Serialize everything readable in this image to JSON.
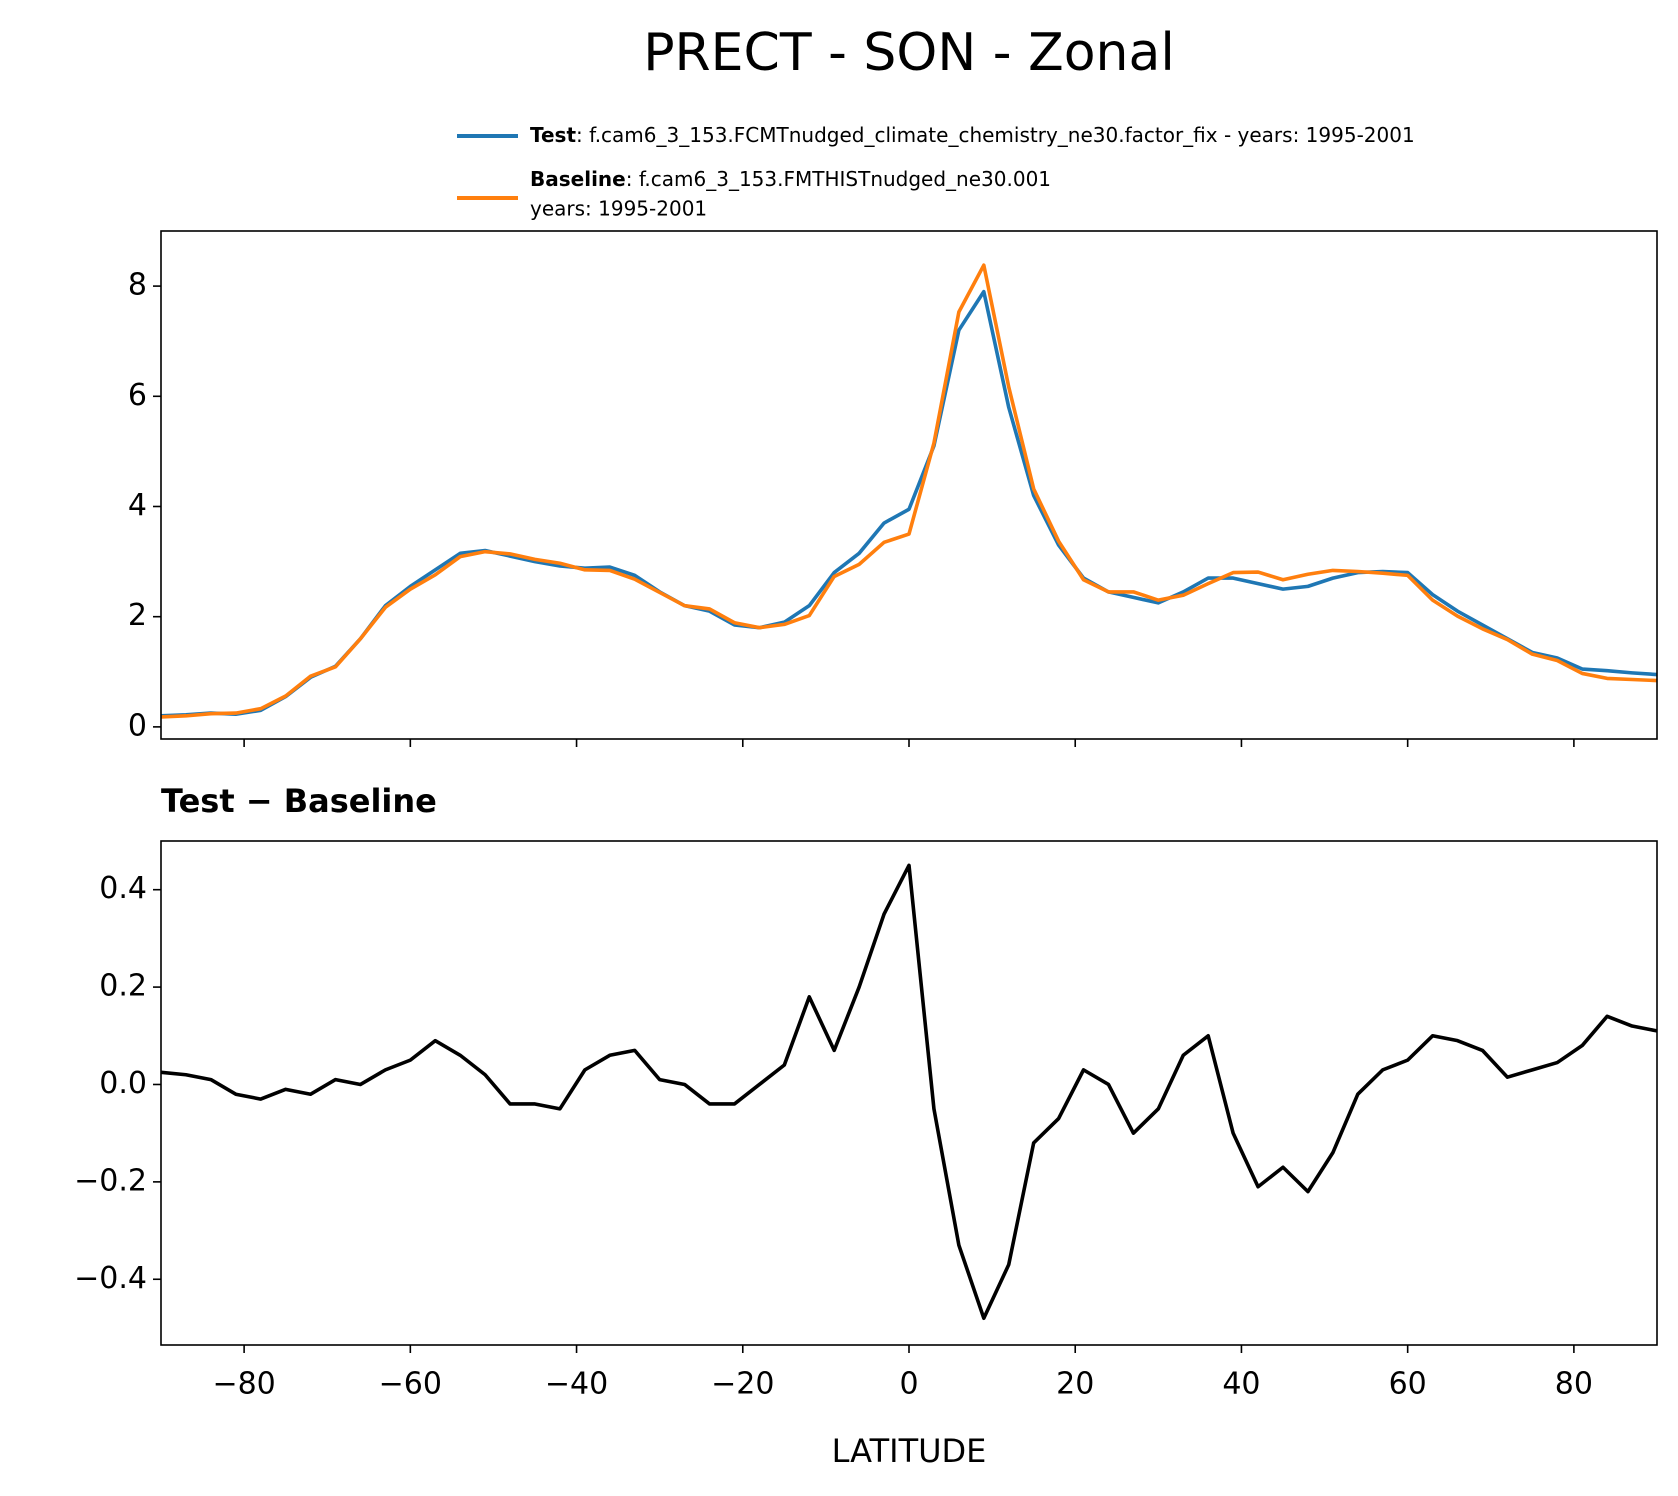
{
  "chart_data": [
    {
      "type": "line",
      "title": "PRECT - SON - Zonal",
      "x": [
        -90,
        -87,
        -84,
        -81,
        -78,
        -75,
        -72,
        -69,
        -66,
        -63,
        -60,
        -57,
        -54,
        -51,
        -48,
        -45,
        -42,
        -39,
        -36,
        -33,
        -30,
        -27,
        -24,
        -21,
        -18,
        -15,
        -12,
        -9,
        -6,
        -3,
        0,
        3,
        6,
        9,
        12,
        15,
        18,
        21,
        24,
        27,
        30,
        33,
        36,
        39,
        42,
        45,
        48,
        51,
        54,
        57,
        60,
        63,
        66,
        69,
        72,
        75,
        78,
        81,
        84,
        87,
        90
      ],
      "series": [
        {
          "name": "Test",
          "description": ": f.cam6_3_153.FCMTnudged_climate_chemistry_ne30.factor_fix - years: 1995-2001",
          "color": "#1f77b4",
          "values": [
            0.2,
            0.22,
            0.25,
            0.23,
            0.3,
            0.55,
            0.9,
            1.1,
            1.6,
            2.2,
            2.55,
            2.85,
            3.15,
            3.2,
            3.1,
            3.0,
            2.92,
            2.88,
            2.9,
            2.75,
            2.45,
            2.2,
            2.1,
            1.85,
            1.8,
            1.9,
            2.2,
            2.8,
            3.15,
            3.7,
            3.95,
            5.1,
            7.2,
            7.9,
            5.8,
            4.2,
            3.3,
            2.7,
            2.45,
            2.35,
            2.25,
            2.45,
            2.7,
            2.7,
            2.6,
            2.5,
            2.55,
            2.7,
            2.8,
            2.82,
            2.8,
            2.4,
            2.1,
            1.85,
            1.6,
            1.35,
            1.25,
            1.05,
            1.02,
            0.98,
            0.95
          ]
        },
        {
          "name": "Baseline",
          "description": [
            ": f.cam6_3_153.FMTHISTnudged_ne30.001",
            "years: 1995-2001"
          ],
          "color": "#ff7f0e",
          "values": [
            0.18,
            0.2,
            0.24,
            0.25,
            0.33,
            0.56,
            0.92,
            1.09,
            1.6,
            2.17,
            2.5,
            2.76,
            3.09,
            3.18,
            3.14,
            3.04,
            2.97,
            2.85,
            2.84,
            2.68,
            2.44,
            2.2,
            2.14,
            1.89,
            1.8,
            1.86,
            2.02,
            2.73,
            2.95,
            3.35,
            3.5,
            5.15,
            7.53,
            8.38,
            6.17,
            4.32,
            3.37,
            2.67,
            2.45,
            2.45,
            2.3,
            2.39,
            2.6,
            2.8,
            2.81,
            2.67,
            2.77,
            2.84,
            2.82,
            2.79,
            2.75,
            2.3,
            2.01,
            1.78,
            1.585,
            1.32,
            1.205,
            0.97,
            0.88,
            0.86,
            0.84
          ]
        }
      ],
      "xlim": [
        -90,
        90
      ],
      "xticks": [
        -80,
        -60,
        -40,
        -20,
        0,
        20,
        40,
        60,
        80
      ],
      "ylim": [
        -0.22,
        9.0
      ],
      "yticks": [
        0,
        2,
        4,
        6,
        8
      ]
    },
    {
      "type": "line",
      "title": "Test − Baseline",
      "xlabel": "LATITUDE",
      "x": [
        -90,
        -87,
        -84,
        -81,
        -78,
        -75,
        -72,
        -69,
        -66,
        -63,
        -60,
        -57,
        -54,
        -51,
        -48,
        -45,
        -42,
        -39,
        -36,
        -33,
        -30,
        -27,
        -24,
        -21,
        -18,
        -15,
        -12,
        -9,
        -6,
        -3,
        0,
        3,
        6,
        9,
        12,
        15,
        18,
        21,
        24,
        27,
        30,
        33,
        36,
        39,
        42,
        45,
        48,
        51,
        54,
        57,
        60,
        63,
        66,
        69,
        72,
        75,
        78,
        81,
        84,
        87,
        90
      ],
      "series": [
        {
          "color": "#000000",
          "values": [
            0.025,
            0.02,
            0.01,
            -0.02,
            -0.03,
            -0.01,
            -0.02,
            0.01,
            0.0,
            0.03,
            0.05,
            0.09,
            0.06,
            0.02,
            -0.04,
            -0.04,
            -0.05,
            0.03,
            0.06,
            0.07,
            0.01,
            0.0,
            -0.04,
            -0.04,
            0.0,
            0.04,
            0.18,
            0.07,
            0.2,
            0.35,
            0.45,
            -0.05,
            -0.33,
            -0.48,
            -0.37,
            -0.12,
            -0.07,
            0.03,
            0.0,
            -0.1,
            -0.05,
            0.06,
            0.1,
            -0.1,
            -0.21,
            -0.17,
            -0.22,
            -0.14,
            -0.02,
            0.03,
            0.05,
            0.1,
            0.09,
            0.07,
            0.015,
            0.03,
            0.045,
            0.08,
            0.14,
            0.12,
            0.11
          ]
        }
      ],
      "xlim": [
        -90,
        90
      ],
      "xticks": [
        {
          "value": -80,
          "label": "−80"
        },
        {
          "value": -60,
          "label": "−60"
        },
        {
          "value": -40,
          "label": "−40"
        },
        {
          "value": -20,
          "label": "−20"
        },
        0,
        20,
        40,
        60,
        80
      ],
      "ylim": [
        -0.535,
        0.5
      ],
      "yticks": [
        {
          "value": -0.4,
          "label": "−0.4"
        },
        {
          "value": -0.2,
          "label": "−0.2"
        },
        {
          "value": 0,
          "label": "0.0"
        },
        0.2,
        0.4
      ]
    }
  ]
}
